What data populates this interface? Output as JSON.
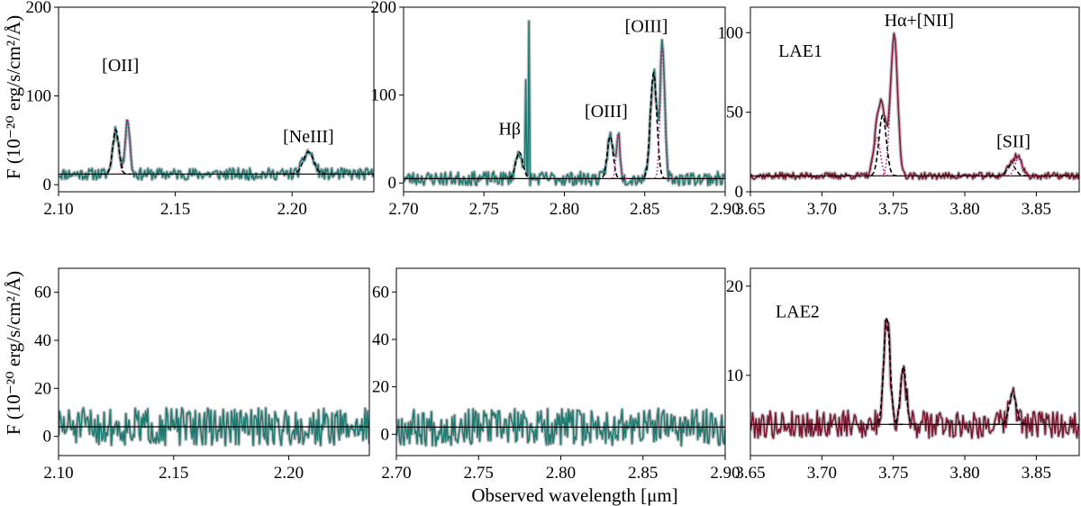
{
  "figure": {
    "xlabel": "Observed wavelength [μm]",
    "ylabel_row1": "F (10⁻²⁰ erg/s/cm²/Å)",
    "ylabel_row2": "F (10⁻²⁰ erg/s/cm²/Å)"
  },
  "colors": {
    "teal": "#1f7a72",
    "maroon": "#7a1530",
    "model_black": "#000000",
    "model_magenta": "#c0157c",
    "model_purple": "#6a3d9a",
    "error_gray": "#bdbdbd"
  },
  "chart_data": [
    {
      "id": "lae1_left",
      "type": "line",
      "object": "LAE1",
      "xlim": [
        2.1,
        2.235
      ],
      "ylim": [
        -8,
        200
      ],
      "xticks": [
        2.1,
        2.15,
        2.2
      ],
      "xtick_labels": [
        "2.10",
        "2.15",
        "2.20"
      ],
      "yticks": [
        0,
        100,
        200
      ],
      "ytick_labels": [
        "0",
        "100",
        "200"
      ],
      "color": "teal",
      "continuum": 12,
      "noise": 5,
      "seed": 11,
      "lines": [
        {
          "mu": 2.1245,
          "sigma": 0.0013,
          "amp": 50,
          "style": "black"
        },
        {
          "mu": 2.1295,
          "sigma": 0.001,
          "amp": 62,
          "style": "magenta"
        },
        {
          "mu": 2.207,
          "sigma": 0.0022,
          "amp": 25,
          "style": "black"
        }
      ],
      "annotations": [
        {
          "text": "[OII]",
          "x": 2.1265,
          "y": 128
        },
        {
          "text": "[NeIII]",
          "x": 2.207,
          "y": 48
        }
      ]
    },
    {
      "id": "lae1_middle",
      "type": "line",
      "object": "LAE1",
      "xlim": [
        2.7,
        2.9
      ],
      "ylim": [
        -10,
        200
      ],
      "xticks": [
        2.7,
        2.75,
        2.8,
        2.85,
        2.9
      ],
      "xtick_labels": [
        "2.70",
        "2.75",
        "2.80",
        "2.85",
        "2.90"
      ],
      "yticks": [
        0,
        100,
        200
      ],
      "ytick_labels": [
        "0",
        "100",
        "200"
      ],
      "color": "teal",
      "continuum": 5,
      "noise": 6,
      "seed": 23,
      "lines": [
        {
          "mu": 2.772,
          "sigma": 0.0022,
          "amp": 30,
          "style": "black"
        },
        {
          "mu": 2.8285,
          "sigma": 0.0018,
          "amp": 48,
          "style": "black"
        },
        {
          "mu": 2.8335,
          "sigma": 0.0012,
          "amp": 50,
          "style": "magenta"
        },
        {
          "mu": 2.8555,
          "sigma": 0.002,
          "amp": 120,
          "style": "black"
        },
        {
          "mu": 2.861,
          "sigma": 0.0014,
          "amp": 150,
          "style": "magenta"
        }
      ],
      "spikes": [
        {
          "x": 2.776,
          "y": 117
        },
        {
          "x": 2.778,
          "y": 184
        }
      ],
      "annotations": [
        {
          "text": "Hβ",
          "x": 2.766,
          "y": 55
        },
        {
          "text": "[OIII]",
          "x": 2.826,
          "y": 75
        },
        {
          "text": "[OIII]",
          "x": 2.851,
          "y": 172
        }
      ]
    },
    {
      "id": "lae1_right",
      "type": "line",
      "object": "LAE1",
      "xlim": [
        3.65,
        3.88
      ],
      "ylim": [
        0,
        116
      ],
      "xticks": [
        3.65,
        3.7,
        3.75,
        3.8,
        3.85
      ],
      "xtick_labels": [
        "3.65",
        "3.70",
        "3.75",
        "3.80",
        "3.85"
      ],
      "yticks": [
        0,
        50,
        100
      ],
      "ytick_labels": [
        "0",
        "50",
        "100"
      ],
      "color": "maroon",
      "continuum": 10,
      "noise": 1.6,
      "seed": 37,
      "lines": [
        {
          "mu": 3.7425,
          "sigma": 0.0026,
          "amp": 38,
          "style": "black"
        },
        {
          "mu": 3.7385,
          "sigma": 0.0024,
          "amp": 24,
          "style": "magenta"
        },
        {
          "mu": 3.7505,
          "sigma": 0.0025,
          "amp": 88,
          "style": "magenta"
        },
        {
          "mu": 3.8325,
          "sigma": 0.003,
          "amp": 7,
          "style": "black"
        },
        {
          "mu": 3.8375,
          "sigma": 0.0025,
          "amp": 11,
          "style": "magenta"
        }
      ],
      "annotations": [
        {
          "text": "LAE1",
          "x": 3.685,
          "y": 85
        },
        {
          "text": "Hα+[NII]",
          "x": 3.768,
          "y": 104
        },
        {
          "text": "[SII]",
          "x": 3.834,
          "y": 28
        }
      ]
    },
    {
      "id": "lae2_left",
      "type": "line",
      "object": "LAE2",
      "xlim": [
        2.1,
        2.235
      ],
      "ylim": [
        -8,
        70
      ],
      "xticks": [
        2.1,
        2.15,
        2.2
      ],
      "xtick_labels": [
        "2.10",
        "2.15",
        "2.20"
      ],
      "yticks": [
        0,
        20,
        40,
        60
      ],
      "ytick_labels": [
        "0",
        "20",
        "40",
        "60"
      ],
      "color": "teal",
      "continuum": 4,
      "noise": 6,
      "seed": 51,
      "lines": [],
      "annotations": []
    },
    {
      "id": "lae2_middle",
      "type": "line",
      "object": "LAE2",
      "xlim": [
        2.7,
        2.9
      ],
      "ylim": [
        -9,
        70
      ],
      "xticks": [
        2.7,
        2.75,
        2.8,
        2.85,
        2.9
      ],
      "xtick_labels": [
        "2.70",
        "2.75",
        "2.80",
        "2.85",
        "2.90"
      ],
      "yticks": [
        0,
        20,
        40,
        60
      ],
      "ytick_labels": [
        "0",
        "20",
        "40",
        "60"
      ],
      "color": "teal",
      "continuum": 3,
      "noise": 6,
      "seed": 67,
      "lines": [],
      "annotations": []
    },
    {
      "id": "lae2_right",
      "type": "line",
      "object": "LAE2",
      "xlim": [
        3.65,
        3.88
      ],
      "ylim": [
        1,
        22
      ],
      "xticks": [
        3.65,
        3.7,
        3.75,
        3.8,
        3.85
      ],
      "xtick_labels": [
        "3.65",
        "3.70",
        "3.75",
        "3.80",
        "3.85"
      ],
      "yticks": [
        10,
        20
      ],
      "ytick_labels": [
        "10",
        "20"
      ],
      "color": "maroon",
      "continuum": 4.5,
      "noise": 1.2,
      "seed": 79,
      "lines": [
        {
          "mu": 3.7455,
          "sigma": 0.0022,
          "amp": 12,
          "style": "black"
        },
        {
          "mu": 3.757,
          "sigma": 0.002,
          "amp": 6.5,
          "style": "black"
        },
        {
          "mu": 3.8335,
          "sigma": 0.0025,
          "amp": 3.5,
          "style": "black"
        }
      ],
      "annotations": [
        {
          "text": "LAE2",
          "x": 3.683,
          "y": 16.5
        }
      ]
    }
  ]
}
